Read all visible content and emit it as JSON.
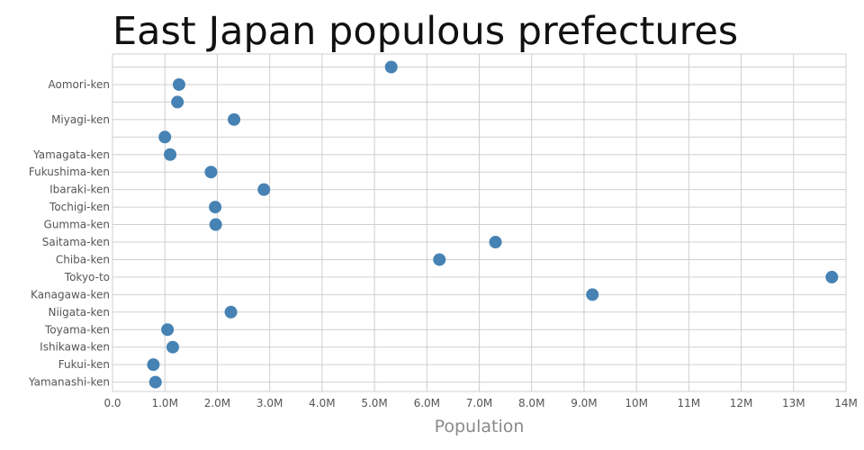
{
  "chart_data": {
    "type": "scatter",
    "title": "East Japan populous prefectures",
    "xlabel": "Population",
    "ylabel": "",
    "xlim": [
      0,
      14000000
    ],
    "x_ticks": [
      0,
      1000000,
      2000000,
      3000000,
      4000000,
      5000000,
      6000000,
      7000000,
      8000000,
      9000000,
      10000000,
      11000000,
      12000000,
      13000000,
      14000000
    ],
    "x_tick_labels": [
      "0.0",
      "1.0M",
      "2.0M",
      "3.0M",
      "4.0M",
      "5.0M",
      "6.0M",
      "7.0M",
      "8.0M",
      "9.0M",
      "10M",
      "11M",
      "12M",
      "13M",
      "14M"
    ],
    "grid": true,
    "marker_color": "#4682b4",
    "points": [
      {
        "label": "",
        "x": 5320000
      },
      {
        "label": "Aomori-ken",
        "x": 1270000
      },
      {
        "label": "",
        "x": 1240000
      },
      {
        "label": "Miyagi-ken",
        "x": 2320000
      },
      {
        "label": "",
        "x": 1000000
      },
      {
        "label": "Yamagata-ken",
        "x": 1100000
      },
      {
        "label": "Fukushima-ken",
        "x": 1880000
      },
      {
        "label": "Ibaraki-ken",
        "x": 2890000
      },
      {
        "label": "Tochigi-ken",
        "x": 1960000
      },
      {
        "label": "Gumma-ken",
        "x": 1970000
      },
      {
        "label": "Saitama-ken",
        "x": 7310000
      },
      {
        "label": "Chiba-ken",
        "x": 6240000
      },
      {
        "label": "Tokyo-to",
        "x": 13730000
      },
      {
        "label": "Kanagawa-ken",
        "x": 9160000
      },
      {
        "label": "Niigata-ken",
        "x": 2260000
      },
      {
        "label": "Toyama-ken",
        "x": 1050000
      },
      {
        "label": "Ishikawa-ken",
        "x": 1150000
      },
      {
        "label": "Fukui-ken",
        "x": 780000
      },
      {
        "label": "Yamanashi-ken",
        "x": 820000
      }
    ]
  }
}
